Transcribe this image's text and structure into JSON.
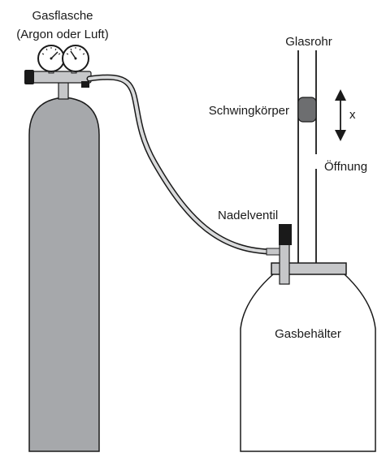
{
  "labels": {
    "cylinder_line1": "Gasflasche",
    "cylinder_line2": "(Argon oder Luft)",
    "tube": "Glasrohr",
    "oscillator": "Schwingkörper",
    "displacement": "x",
    "opening": "Öffnung",
    "needle_valve": "Nadelventil",
    "container": "Gasbehälter"
  },
  "colors": {
    "cylinder_fill": "#a6a8ab",
    "container_fill": "#ffffff",
    "collar_fill": "#c6c7c9",
    "oscillator_fill": "#6d6e70",
    "valve_fill": "#1a1a1a",
    "stroke": "#1a1a1a"
  }
}
